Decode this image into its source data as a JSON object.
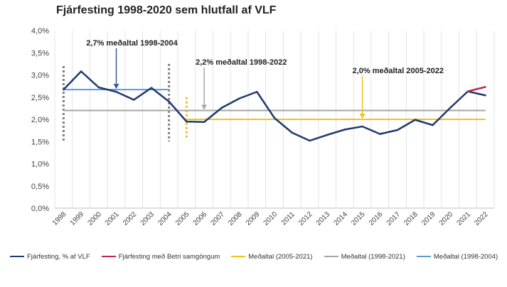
{
  "chart_data": {
    "type": "line",
    "title": "Fjárfesting 1998-2020 sem hlutfall af VLF",
    "xlabel": "",
    "ylabel": "",
    "x": [
      "1998",
      "1999",
      "2000",
      "2001",
      "2002",
      "2003",
      "2004",
      "2005",
      "2006",
      "2007",
      "2008",
      "2009",
      "2010",
      "2011",
      "2012",
      "2013",
      "2014",
      "2015",
      "2016",
      "2017",
      "2018",
      "2019",
      "2020",
      "2021",
      "2022"
    ],
    "ylim": [
      0,
      4.0
    ],
    "yticks": [
      "0,0%",
      "0,5%",
      "1,0%",
      "1,5%",
      "2,0%",
      "2,5%",
      "3,0%",
      "3,5%",
      "4,0%"
    ],
    "grid": "vertical",
    "legend_position": "bottom",
    "series": [
      {
        "name": "Fjárfesting, % af VLF",
        "color": "#1f3a6e",
        "values": [
          2.67,
          3.08,
          2.72,
          2.62,
          2.44,
          2.71,
          2.4,
          1.95,
          1.94,
          2.26,
          2.47,
          2.62,
          2.03,
          1.7,
          1.52,
          1.65,
          1.77,
          1.84,
          1.67,
          1.76,
          1.99,
          1.87,
          2.26,
          2.63,
          2.54
        ]
      },
      {
        "name": "Fjárfesting með Betri samgöngum",
        "color": "#c0284a",
        "values": [
          null,
          null,
          null,
          null,
          null,
          null,
          null,
          null,
          null,
          null,
          null,
          null,
          null,
          null,
          null,
          null,
          null,
          null,
          null,
          null,
          null,
          null,
          null,
          2.63,
          2.73
        ]
      },
      {
        "name": "Meðaltal (2005-2021)",
        "color": "#f2c21b",
        "value": 2.0,
        "x_range": [
          "2005",
          "2022"
        ]
      },
      {
        "name": "Meðaltal (1998-2021)",
        "color": "#a6a6a6",
        "value": 2.2,
        "x_range": [
          "1998",
          "2022"
        ]
      },
      {
        "name": "Meðaltal (1998-2004)",
        "color": "#5b9bd5",
        "value": 2.67,
        "x_range": [
          "1998",
          "2004"
        ]
      }
    ],
    "annotations": [
      {
        "text": "2,7% meðaltal 1998-2004",
        "x": "2001",
        "y": 2.67,
        "color": "#3b5a9a"
      },
      {
        "text": "2,2% meðaltal 1998-2022",
        "x": "2006",
        "y": 2.2,
        "color": "#a6a6a6"
      },
      {
        "text": "2,0% meðaltal 2005-2022",
        "x": "2015",
        "y": 2.0,
        "color": "#f2c21b"
      }
    ],
    "period_markers": [
      {
        "x": "1998",
        "y_range": [
          1.5,
          3.2
        ],
        "color": "#7f7f7f"
      },
      {
        "x": "2004",
        "y_range": [
          1.5,
          3.25
        ],
        "color": "#7f7f7f"
      },
      {
        "x": "2005",
        "y_range": [
          1.55,
          2.5
        ],
        "color": "#f2c21b"
      }
    ]
  }
}
